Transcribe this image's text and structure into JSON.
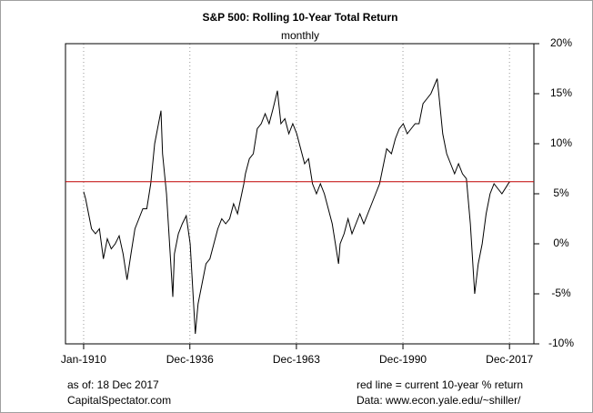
{
  "chart_data": {
    "type": "line",
    "title": "S&P 500: Rolling 10-Year Total Return",
    "subtitle": "monthly",
    "x": [
      1910,
      1910.5,
      1911,
      1912,
      1913,
      1914,
      1915,
      1916,
      1917,
      1918,
      1919,
      1920,
      1921,
      1922,
      1923,
      1924,
      1925,
      1926,
      1927,
      1928,
      1929.6,
      1930,
      1931,
      1932.6,
      1933,
      1934,
      1935,
      1936,
      1937,
      1938.3,
      1939,
      1940,
      1941,
      1942,
      1943,
      1944,
      1945,
      1946,
      1947,
      1948,
      1949,
      1950.6,
      1951,
      1952,
      1953,
      1954,
      1955,
      1956,
      1957,
      1958,
      1959.1,
      1960,
      1961,
      1962,
      1963,
      1964,
      1965,
      1966,
      1967,
      1968,
      1969,
      1970,
      1971,
      1972,
      1973,
      1974.6,
      1975,
      1976,
      1977,
      1978,
      1979,
      1980,
      1981,
      1982,
      1983,
      1984,
      1985,
      1986.8,
      1988,
      1989,
      1990,
      1991,
      1992,
      1993,
      1994,
      1995,
      1996,
      1997,
      1998,
      1999.6,
      2000,
      2001,
      2002,
      2003,
      2004,
      2005,
      2006,
      2007,
      2008,
      2009.1,
      2010,
      2011,
      2012,
      2013,
      2014,
      2015,
      2016,
      2017.92
    ],
    "values": [
      5.2,
      4.5,
      3.5,
      1.5,
      1.0,
      1.5,
      -1.5,
      0.5,
      -0.5,
      0,
      0.8,
      -1,
      -3.6,
      -1,
      1.5,
      2.5,
      3.5,
      3.5,
      6,
      10,
      13.3,
      9,
      5,
      -5.3,
      -1,
      1,
      2,
      2.8,
      0,
      -9,
      -6,
      -4,
      -2,
      -1.5,
      0,
      1.5,
      2.5,
      2,
      2.5,
      4,
      3,
      6,
      7,
      8.5,
      9,
      11.5,
      12,
      13,
      12,
      13.5,
      15.3,
      12,
      12.5,
      11,
      12,
      11,
      9.5,
      8,
      8.5,
      6,
      5,
      6,
      5,
      3.5,
      2,
      -2,
      0,
      1,
      2.5,
      1,
      2,
      3,
      2,
      3,
      4,
      5,
      6,
      9.5,
      9,
      10.5,
      11.5,
      12,
      11,
      11.5,
      12,
      12,
      14,
      14.5,
      15,
      16.5,
      15,
      11,
      9,
      8,
      7,
      8,
      7,
      6.5,
      2,
      -5,
      -2,
      0,
      3,
      5,
      6,
      5.5,
      5,
      6.2
    ],
    "color": "#000000",
    "reference_line": {
      "value": 6.2,
      "color": "#c00000"
    },
    "xlim": [
      1905.4,
      2024.1
    ],
    "xticks": [
      {
        "value": 1910,
        "label": "Jan-1910"
      },
      {
        "value": 1936.92,
        "label": "Dec-1936"
      },
      {
        "value": 1963.92,
        "label": "Dec-1963"
      },
      {
        "value": 1990.92,
        "label": "Dec-1990"
      },
      {
        "value": 2017.92,
        "label": "Dec-2017"
      }
    ],
    "ylim": [
      -10,
      20
    ],
    "yticks": [
      {
        "value": -10,
        "label": "-10%"
      },
      {
        "value": -5,
        "label": "-5%"
      },
      {
        "value": 0,
        "label": "0%"
      },
      {
        "value": 5,
        "label": "5%"
      },
      {
        "value": 10,
        "label": "10%"
      },
      {
        "value": 15,
        "label": "15%"
      },
      {
        "value": 20,
        "label": "20%"
      }
    ],
    "grid": "x",
    "footer_left": [
      "as of: 18 Dec 2017",
      "CapitalSpectator.com"
    ],
    "footer_right": [
      "red line = current 10-year % return",
      "Data: www.econ.yale.edu/~shiller/"
    ]
  }
}
